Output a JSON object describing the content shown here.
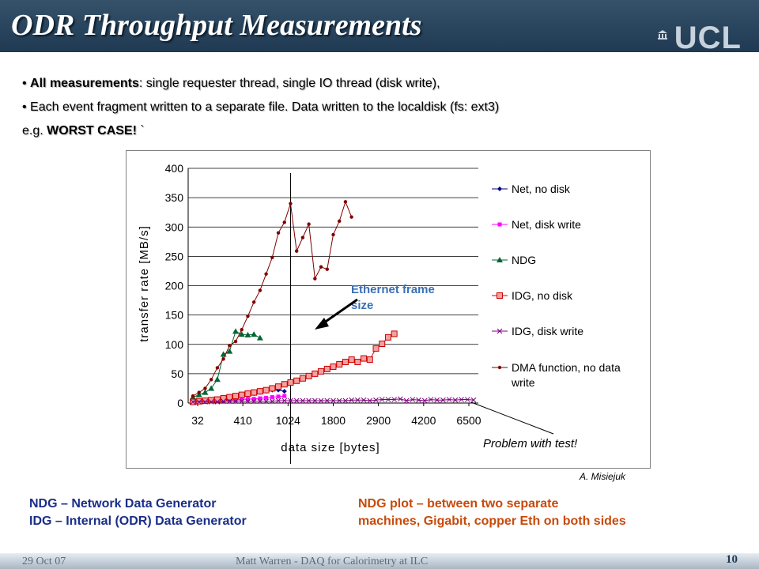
{
  "slide": {
    "title": "ODR Throughput Measurements",
    "logo_text": "UCL",
    "bullets": [
      {
        "bold": "All measurements",
        "rest": ": single requester thread, single IO thread (disk write),"
      },
      {
        "bold": "",
        "rest": "Each event fragment written to a separate file. Data written to the localdisk (fs: ext3)"
      }
    ],
    "eg_prefix": "e.g. ",
    "eg_bold": "WORST CASE!",
    "eg_suffix": " `",
    "credit": "A. Misiejuk",
    "definitions": [
      "NDG – Network Data Generator",
      "IDG – Internal (ODR) Data Generator"
    ],
    "note": [
      "NDG plot – between two separate",
      "machines, Gigabit, copper Eth on both sides"
    ],
    "footer": {
      "date": "29 Oct 07",
      "center": "Matt Warren  -  DAQ for Calorimetry at ILC",
      "page": "10"
    }
  },
  "chart_data": {
    "type": "line",
    "xlabel": "data size [bytes]",
    "ylabel": "transfer rate [MB/s]",
    "ylim": [
      0,
      400
    ],
    "yticks": [
      0,
      50,
      100,
      150,
      200,
      250,
      300,
      350,
      400
    ],
    "xtick_labels": [
      "32",
      "410",
      "1024",
      "1800",
      "2900",
      "4200",
      "6500"
    ],
    "grid": "horizontal",
    "legend_position": "right",
    "x_positions": 47,
    "series": [
      {
        "name": "Net, no disk",
        "color": "#000080",
        "marker": "diamond",
        "start": 0,
        "values": [
          5,
          3,
          4,
          5,
          6,
          8,
          9,
          10,
          12,
          14,
          16,
          18,
          20,
          22,
          22,
          20
        ]
      },
      {
        "name": "Net, disk write",
        "color": "#ff00ff",
        "marker": "square",
        "start": 0,
        "values": [
          3,
          2,
          3,
          3,
          3,
          4,
          5,
          5,
          6,
          7,
          7,
          8,
          9,
          10,
          11,
          12
        ]
      },
      {
        "name": "NDG",
        "color": "#006633",
        "marker": "triangle",
        "start": 0,
        "values": [
          10,
          14,
          18,
          25,
          40,
          83,
          88,
          122,
          117,
          116,
          117,
          111
        ]
      },
      {
        "name": "IDG, no disk",
        "color": "#cc0000",
        "marker": "square-open",
        "start": 0,
        "values": [
          2,
          3,
          4,
          5,
          6,
          8,
          10,
          12,
          14,
          16,
          18,
          20,
          22,
          25,
          28,
          32,
          35,
          38,
          42,
          46,
          50,
          54,
          58,
          62,
          66,
          70,
          74,
          70,
          76,
          74,
          93,
          101,
          112,
          118
        ]
      },
      {
        "name": "IDG, disk write",
        "color": "#800080",
        "marker": "x",
        "start": 0,
        "values": [
          2,
          2,
          2,
          2,
          2,
          3,
          3,
          3,
          3,
          3,
          3,
          3,
          3,
          3,
          4,
          4,
          4,
          4,
          4,
          4,
          4,
          4,
          4,
          4,
          4,
          4,
          5,
          5,
          5,
          4,
          5,
          6,
          6,
          6,
          7,
          4,
          6,
          5,
          4,
          6,
          5,
          5,
          6,
          5,
          6,
          6,
          5
        ]
      },
      {
        "name": "DMA function, no data write",
        "color": "#800000",
        "marker": "dot",
        "start": 0,
        "values": [
          12,
          18,
          25,
          40,
          60,
          75,
          98,
          105,
          125,
          148,
          172,
          192,
          220,
          248,
          290,
          308,
          340,
          259,
          282,
          305,
          212,
          232,
          228,
          287,
          310,
          343,
          317
        ]
      }
    ],
    "annotations": [
      {
        "text": "Ethernet frame size",
        "color": "#3a6fb5"
      },
      {
        "text": "Problem with test!",
        "color": "#000000"
      }
    ]
  }
}
